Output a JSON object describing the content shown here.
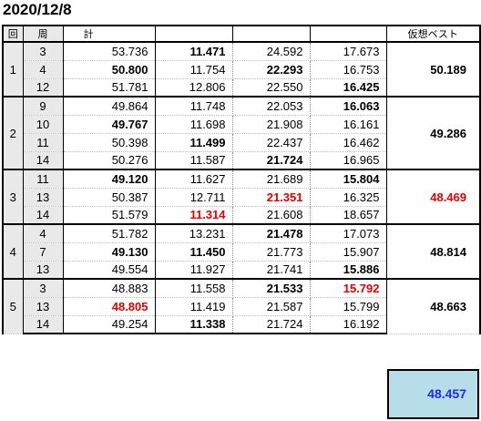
{
  "date": "2020/12/8",
  "headers": {
    "kai": "回",
    "shu": "周",
    "kei": "計",
    "best": "仮想ベスト"
  },
  "groups": [
    {
      "kai": "1",
      "best": "50.189",
      "best_red": false,
      "rows": [
        {
          "shu": "3",
          "kei": "53.736",
          "s1": "11.471",
          "s2": "24.592",
          "s3": "17.673",
          "bold": [
            "s1"
          ],
          "red": []
        },
        {
          "shu": "4",
          "kei": "50.800",
          "s1": "11.754",
          "s2": "22.293",
          "s3": "16.753",
          "bold": [
            "kei",
            "s2"
          ],
          "red": []
        },
        {
          "shu": "12",
          "kei": "51.781",
          "s1": "12.806",
          "s2": "22.550",
          "s3": "16.425",
          "bold": [
            "s3"
          ],
          "red": []
        }
      ]
    },
    {
      "kai": "2",
      "best": "49.286",
      "best_red": false,
      "rows": [
        {
          "shu": "9",
          "kei": "49.864",
          "s1": "11.748",
          "s2": "22.053",
          "s3": "16.063",
          "bold": [
            "s3"
          ],
          "red": []
        },
        {
          "shu": "10",
          "kei": "49.767",
          "s1": "11.698",
          "s2": "21.908",
          "s3": "16.161",
          "bold": [
            "kei"
          ],
          "red": []
        },
        {
          "shu": "11",
          "kei": "50.398",
          "s1": "11.499",
          "s2": "22.437",
          "s3": "16.462",
          "bold": [
            "s1"
          ],
          "red": []
        },
        {
          "shu": "14",
          "kei": "50.276",
          "s1": "11.587",
          "s2": "21.724",
          "s3": "16.965",
          "bold": [
            "s2"
          ],
          "red": []
        }
      ]
    },
    {
      "kai": "3",
      "best": "48.469",
      "best_red": true,
      "rows": [
        {
          "shu": "11",
          "kei": "49.120",
          "s1": "11.627",
          "s2": "21.689",
          "s3": "15.804",
          "bold": [
            "kei",
            "s3"
          ],
          "red": []
        },
        {
          "shu": "13",
          "kei": "50.387",
          "s1": "12.711",
          "s2": "21.351",
          "s3": "16.325",
          "bold": [
            "s2"
          ],
          "red": [
            "s2"
          ]
        },
        {
          "shu": "14",
          "kei": "51.579",
          "s1": "11.314",
          "s2": "21.608",
          "s3": "18.657",
          "bold": [
            "s1"
          ],
          "red": [
            "s1"
          ]
        }
      ]
    },
    {
      "kai": "4",
      "best": "48.814",
      "best_red": false,
      "rows": [
        {
          "shu": "4",
          "kei": "51.782",
          "s1": "13.231",
          "s2": "21.478",
          "s3": "17.073",
          "bold": [
            "s2"
          ],
          "red": []
        },
        {
          "shu": "7",
          "kei": "49.130",
          "s1": "11.450",
          "s2": "21.773",
          "s3": "15.907",
          "bold": [
            "kei",
            "s1"
          ],
          "red": []
        },
        {
          "shu": "13",
          "kei": "49.554",
          "s1": "11.927",
          "s2": "21.741",
          "s3": "15.886",
          "bold": [
            "s3"
          ],
          "red": []
        }
      ]
    },
    {
      "kai": "5",
      "best": "48.663",
      "best_red": false,
      "rows": [
        {
          "shu": "3",
          "kei": "48.883",
          "s1": "11.558",
          "s2": "21.533",
          "s3": "15.792",
          "bold": [
            "s2",
            "s3"
          ],
          "red": [
            "s3"
          ]
        },
        {
          "shu": "13",
          "kei": "48.805",
          "s1": "11.419",
          "s2": "21.587",
          "s3": "15.799",
          "bold": [
            "kei"
          ],
          "red": [
            "kei"
          ]
        },
        {
          "shu": "14",
          "kei": "49.254",
          "s1": "11.338",
          "s2": "21.724",
          "s3": "16.192",
          "bold": [
            "s1"
          ],
          "red": []
        }
      ]
    }
  ],
  "overall_best": "48.457",
  "colors": {
    "red": "#e00000",
    "blue": "#1a2ee8",
    "total_bg": "#b7dde8",
    "header_bg": "#e9e9e9"
  }
}
